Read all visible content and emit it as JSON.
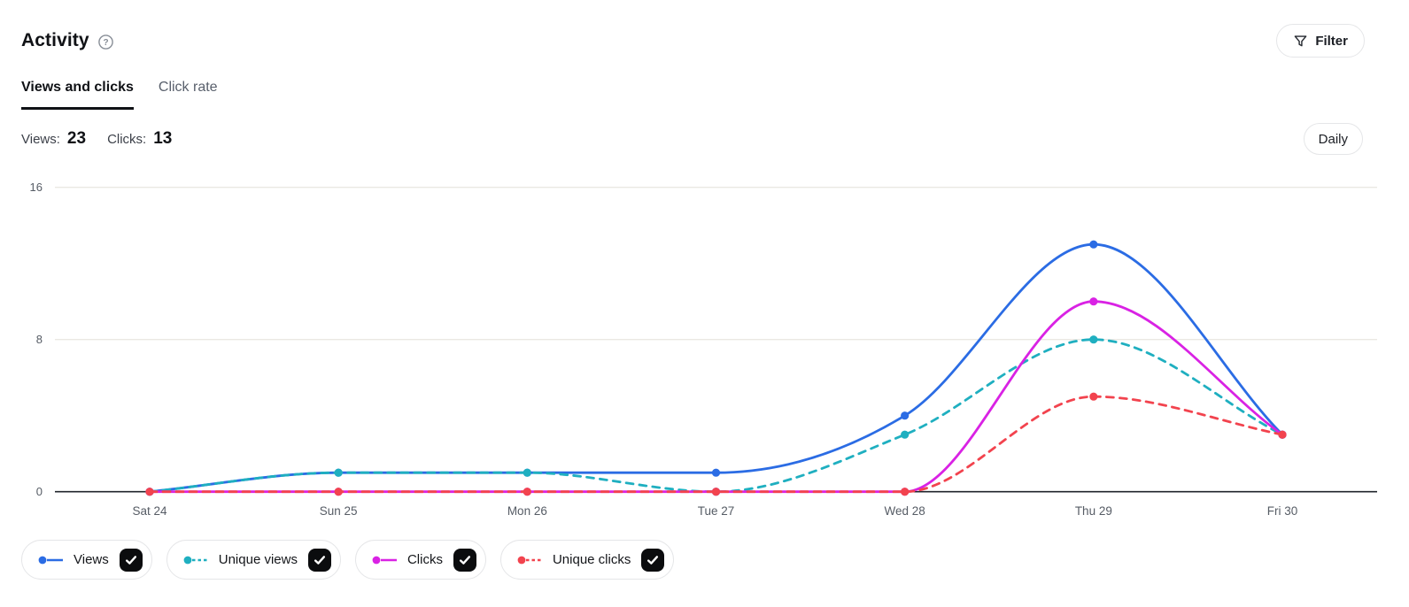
{
  "header": {
    "title": "Activity",
    "help_icon": "question-mark-circle-icon",
    "filter_button": {
      "label": "Filter",
      "icon": "funnel-icon"
    }
  },
  "tabs": [
    {
      "label": "Views and clicks",
      "active": true
    },
    {
      "label": "Click rate",
      "active": false
    }
  ],
  "stats": {
    "views_label": "Views:",
    "views_value": "23",
    "clicks_label": "Clicks:",
    "clicks_value": "13"
  },
  "period_button": {
    "label": "Daily"
  },
  "colors": {
    "border": "#e5e6e8",
    "tab_inactive": "#59606c",
    "checkbox_bg": "#0b0c0e",
    "gridline": "#eae8e3",
    "axis_line": "#21252c",
    "tick_text": "#565c65"
  },
  "chart_data": {
    "type": "line",
    "x": [
      "Sat 24",
      "Sun 25",
      "Mon 26",
      "Tue 27",
      "Wed 28",
      "Thu 29",
      "Fri 30"
    ],
    "series": [
      {
        "name": "Views",
        "color": "#2b6ce4",
        "style": "solid",
        "checked": true,
        "values": [
          0,
          1,
          1,
          1,
          4,
          13,
          3
        ]
      },
      {
        "name": "Unique views",
        "color": "#1fafc0",
        "style": "dashed",
        "checked": true,
        "values": [
          0,
          1,
          1,
          0,
          3,
          8,
          3
        ]
      },
      {
        "name": "Clicks",
        "color": "#d922e4",
        "style": "solid",
        "checked": true,
        "values": [
          0,
          0,
          0,
          0,
          0,
          10,
          3
        ]
      },
      {
        "name": "Unique clicks",
        "color": "#f2434e",
        "style": "dashed",
        "checked": true,
        "values": [
          0,
          0,
          0,
          0,
          0,
          5,
          3
        ]
      }
    ],
    "yticks": [
      0,
      8,
      16
    ],
    "ylim": [
      0,
      16
    ],
    "grid": "horizontal",
    "legend_position": "bottom",
    "interpolation": "monotone"
  }
}
